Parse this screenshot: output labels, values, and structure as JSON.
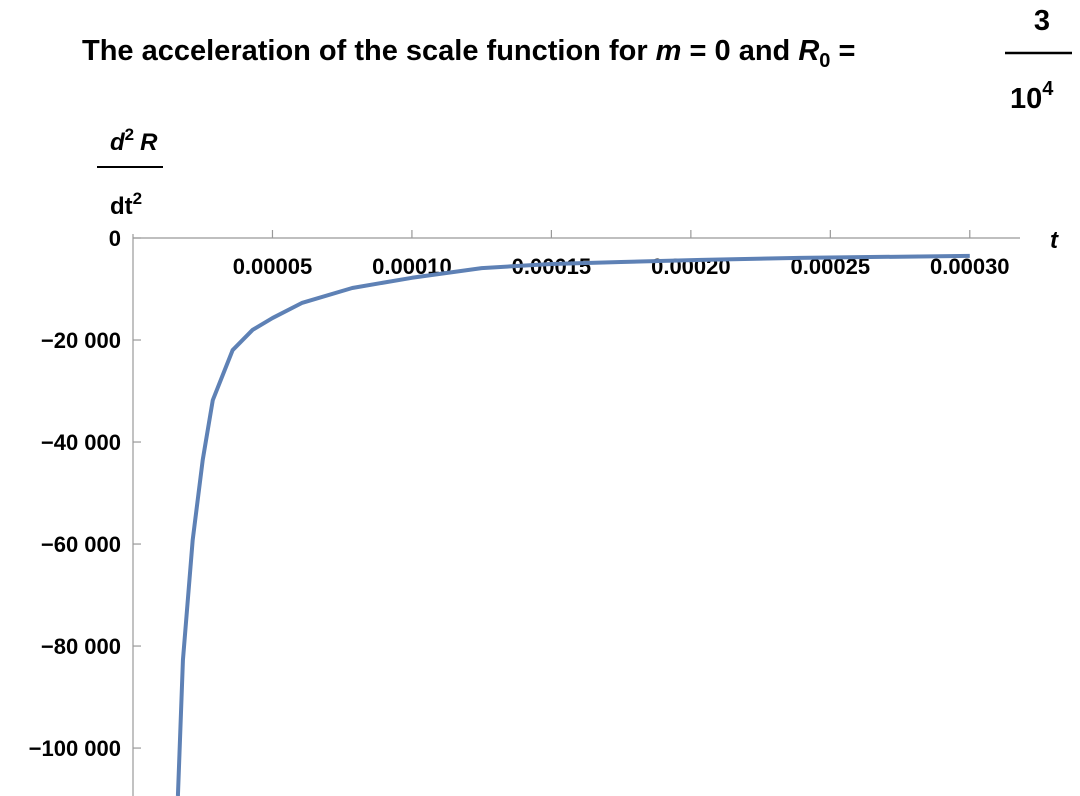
{
  "chart_data": {
    "type": "line",
    "title": {
      "text": "The acceleration of the scale function for ",
      "m": "m",
      "eq": " = 0 and ",
      "R": "R",
      "sub": "0",
      "eq2": " = ",
      "num": "3",
      "den": "10",
      "exp": "4"
    },
    "y_label": {
      "d": "d",
      "d_exp": "2",
      "R": "R",
      "dt": "dt",
      "dt_exp": "2"
    },
    "x_label": "t",
    "x": [
      1.61e-05,
      1.79e-05,
      2.14e-05,
      2.5e-05,
      2.86e-05,
      3.57e-05,
      4.29e-05,
      5e-05,
      6.07e-05,
      7.86e-05,
      0.0001,
      0.000125,
      0.00015,
      0.000175,
      0.000204,
      0.000239,
      0.0003
    ],
    "series": [
      {
        "color": "#5e81b5",
        "values": [
          -109400,
          -82750,
          -59200,
          -43500,
          -31800,
          -22000,
          -18000,
          -15700,
          -12700,
          -9800,
          -7800,
          -5900,
          -5100,
          -4700,
          -4300,
          -3900,
          -3500
        ]
      }
    ],
    "xlim": [
      0,
      0.000318
    ],
    "ylim": [
      -109400,
      0
    ],
    "xticks": [
      5e-05,
      {
        "value": 0.0001,
        "label": "0.00010"
      },
      0.00015,
      {
        "value": 0.0002,
        "label": "0.00020"
      },
      0.00025,
      {
        "value": 0.0003,
        "label": "0.00030"
      }
    ],
    "yticks": [
      0,
      {
        "value": -20000,
        "label": "−20 000"
      },
      {
        "value": -40000,
        "label": "−40 000"
      },
      {
        "value": -60000,
        "label": "−60 000"
      },
      {
        "value": -80000,
        "label": "−80 000"
      },
      {
        "value": -100000,
        "label": "−100 000"
      }
    ]
  }
}
